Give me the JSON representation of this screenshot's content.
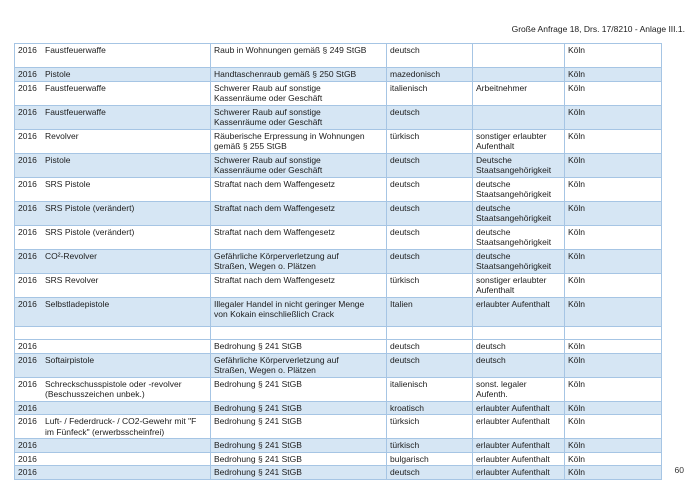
{
  "page": {
    "header_right": "Große Anfrage 18, Drs. 17/8210 - Anlage III.1.",
    "page_number": "60"
  },
  "colors": {
    "row_alt_fill": "#d6e6f4",
    "table_border": "#a6c5e4",
    "text_color": "#1c1c1c"
  },
  "table": {
    "rows": [
      {
        "year": "2016",
        "weapon": "Faustfeuerwaffe",
        "offense": "Raub in Wohnungen gemäß § 249 StGB",
        "nationality": "deutsch",
        "status": "",
        "city": "Köln",
        "shaded": false,
        "min_lines": 2
      },
      {
        "year": "2016",
        "weapon": "Pistole",
        "offense": "Handtaschenraub gemäß § 250 StGB",
        "nationality": "mazedonisch",
        "status": "",
        "city": "Köln",
        "shaded": true,
        "min_lines": 1
      },
      {
        "year": "2016",
        "weapon": "Faustfeuerwaffe",
        "offense": "Schwerer Raub auf sonstige\nKassenräume oder Geschäft",
        "nationality": "italienisch",
        "status": "Arbeitnehmer",
        "city": "Köln",
        "shaded": false,
        "min_lines": 2
      },
      {
        "year": "2016",
        "weapon": "Faustfeuerwaffe",
        "offense": "Schwerer Raub auf sonstige\nKassenräume oder Geschäft",
        "nationality": "deutsch",
        "status": "",
        "city": "Köln",
        "shaded": true,
        "min_lines": 2
      },
      {
        "year": "2016",
        "weapon": "Revolver",
        "offense": "Räuberische Erpressung in Wohnungen\ngemäß § 255 StGB",
        "nationality": "türkisch",
        "status": "sonstiger erlaubter\nAufenthalt",
        "city": "Köln",
        "shaded": false,
        "min_lines": 2
      },
      {
        "year": "2016",
        "weapon": "Pistole",
        "offense": "Schwerer Raub auf sonstige\nKassenräume oder Geschäft",
        "nationality": "deutsch",
        "status": "Deutsche\nStaatsangehörigkeit",
        "city": "Köln",
        "shaded": true,
        "min_lines": 2
      },
      {
        "year": "2016",
        "weapon": "SRS Pistole",
        "offense": "Straftat nach dem Waffengesetz",
        "nationality": "deutsch",
        "status": "deutsche\nStaatsangehörigkeit",
        "city": "Köln",
        "shaded": false,
        "min_lines": 2
      },
      {
        "year": "2016",
        "weapon": "SRS Pistole (verändert)",
        "offense": "Straftat nach dem Waffengesetz",
        "nationality": "deutsch",
        "status": "deutsche\nStaatsangehörigkeit",
        "city": "Köln",
        "shaded": true,
        "min_lines": 2
      },
      {
        "year": "2016",
        "weapon": "SRS Pistole (verändert)",
        "offense": "Straftat nach dem Waffengesetz",
        "nationality": "deutsch",
        "status": "deutsche\nStaatsangehörigkeit",
        "city": "Köln",
        "shaded": false,
        "min_lines": 2
      },
      {
        "year": "2016",
        "weapon": "CO²-Revolver",
        "offense": "Gefährliche Körperverletzung auf\nStraßen, Wegen o. Plätzen",
        "nationality": "deutsch",
        "status": "deutsche\nStaatsangehörigkeit",
        "city": "Köln",
        "shaded": true,
        "min_lines": 2
      },
      {
        "year": "2016",
        "weapon": "SRS Revolver",
        "offense": "Straftat nach dem Waffengesetz",
        "nationality": "türkisch",
        "status": "sonstiger erlaubter\nAufenthalt",
        "city": "Köln",
        "shaded": false,
        "min_lines": 2
      },
      {
        "year": "2016",
        "weapon": "Selbstladepistole",
        "offense": "Illegaler Handel in nicht geringer Menge\nvon Kokain einschließlich Crack",
        "nationality": "Italien",
        "status": "erlaubter Aufenthalt",
        "city": "Köln",
        "shaded": true,
        "min_lines": 2.5
      },
      {
        "year": "",
        "weapon": "",
        "offense": "",
        "nationality": "",
        "status": "",
        "city": "",
        "shaded": false,
        "min_lines": 1
      },
      {
        "year": "2016",
        "weapon": "",
        "offense": "Bedrohung § 241 StGB",
        "nationality": "deutsch",
        "status": "deutsch",
        "city": "Köln",
        "shaded": false,
        "min_lines": 1
      },
      {
        "year": "2016",
        "weapon": "Softairpistole",
        "offense": "Gefährliche Körperverletzung auf\nStraßen, Wegen o. Plätzen",
        "nationality": "deutsch",
        "status": "deutsch",
        "city": "Köln",
        "shaded": true,
        "min_lines": 2
      },
      {
        "year": "2016",
        "weapon": "Schreckschusspistole oder -revolver\n(Beschusszeichen unbek.)",
        "offense": "Bedrohung § 241 StGB",
        "nationality": "italienisch",
        "status": "sonst. legaler\nAufenth.",
        "city": "Köln",
        "shaded": false,
        "min_lines": 2
      },
      {
        "year": "2016",
        "weapon": "",
        "offense": "Bedrohung § 241 StGB",
        "nationality": "kroatisch",
        "status": "erlaubter Aufenthalt",
        "city": "Köln",
        "shaded": true,
        "min_lines": 1
      },
      {
        "year": "2016",
        "weapon": "Luft- / Federdruck- / CO2-Gewehr mit \"F\nim Fünfeck\" (erwerbsscheinfrei)",
        "offense": "Bedrohung § 241 StGB",
        "nationality": "türksich",
        "status": "erlaubter Aufenthalt",
        "city": "Köln",
        "shaded": false,
        "min_lines": 2
      },
      {
        "year": "2016",
        "weapon": "",
        "offense": "Bedrohung § 241 StGB",
        "nationality": "türkisch",
        "status": "erlaubter Aufenthalt",
        "city": "Köln",
        "shaded": true,
        "min_lines": 1
      },
      {
        "year": "2016",
        "weapon": "",
        "offense": "Bedrohung § 241 StGB",
        "nationality": "bulgarisch",
        "status": "erlaubter Aufenthalt",
        "city": "Köln",
        "shaded": false,
        "min_lines": 1
      },
      {
        "year": "2016",
        "weapon": "",
        "offense": "Bedrohung § 241 StGB",
        "nationality": "deutsch",
        "status": "erlaubter Aufenthalt",
        "city": "Köln",
        "shaded": true,
        "min_lines": 1
      }
    ]
  }
}
